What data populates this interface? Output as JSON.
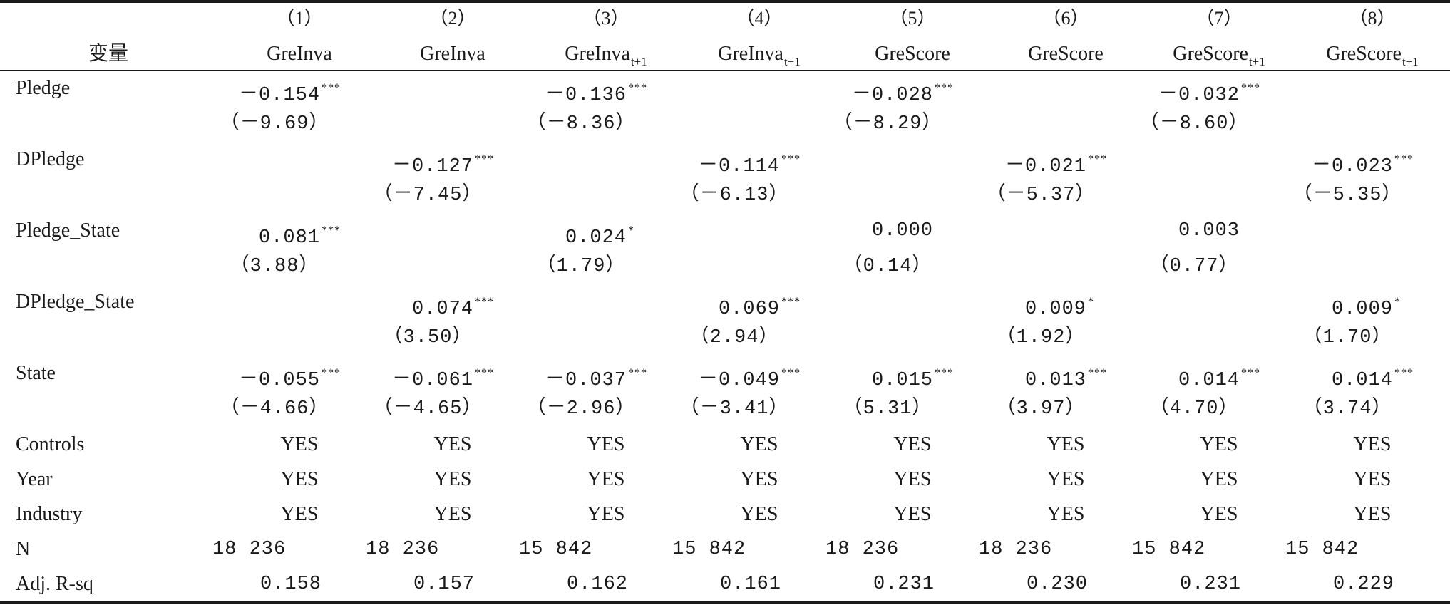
{
  "table": {
    "stub_header": "变量",
    "columns": [
      {
        "num": "（1）",
        "name": "GreInva",
        "sub": ""
      },
      {
        "num": "（2）",
        "name": "GreInva",
        "sub": ""
      },
      {
        "num": "（3）",
        "name": "GreInva",
        "sub": "t+1"
      },
      {
        "num": "（4）",
        "name": "GreInva",
        "sub": "t+1"
      },
      {
        "num": "（5）",
        "name": "GreScore",
        "sub": ""
      },
      {
        "num": "（6）",
        "name": "GreScore",
        "sub": ""
      },
      {
        "num": "（7）",
        "name": "GreScore",
        "sub": "t+1"
      },
      {
        "num": "（8）",
        "name": "GreScore",
        "sub": "t+1"
      }
    ],
    "rows": [
      {
        "label": "Pledge",
        "coef": [
          "－0.154",
          "",
          "－0.136",
          "",
          "－0.028",
          "",
          "－0.032",
          ""
        ],
        "stars": [
          "***",
          "",
          "***",
          "",
          "***",
          "",
          "***",
          ""
        ],
        "t": [
          "（－9.69）",
          "",
          "（－8.36）",
          "",
          "（－8.29）",
          "",
          "（－8.60）",
          ""
        ]
      },
      {
        "label": "DPledge",
        "coef": [
          "",
          "－0.127",
          "",
          "－0.114",
          "",
          "－0.021",
          "",
          "－0.023"
        ],
        "stars": [
          "",
          "***",
          "",
          "***",
          "",
          "***",
          "",
          "***"
        ],
        "t": [
          "",
          "（－7.45）",
          "",
          "（－6.13）",
          "",
          "（－5.37）",
          "",
          "（－5.35）"
        ]
      },
      {
        "label": "Pledge_State",
        "coef": [
          "0.081",
          "",
          "0.024",
          "",
          "0.000",
          "",
          "0.003",
          ""
        ],
        "stars": [
          "***",
          "",
          "*",
          "",
          "",
          "",
          "",
          ""
        ],
        "t": [
          "（3.88）",
          "",
          "（1.79）",
          "",
          "（0.14）",
          "",
          "（0.77）",
          ""
        ]
      },
      {
        "label": "DPledge_State",
        "coef": [
          "",
          "0.074",
          "",
          "0.069",
          "",
          "0.009",
          "",
          "0.009"
        ],
        "stars": [
          "",
          "***",
          "",
          "***",
          "",
          "*",
          "",
          "*"
        ],
        "t": [
          "",
          "（3.50）",
          "",
          "（2.94）",
          "",
          "（1.92）",
          "",
          "（1.70）"
        ]
      },
      {
        "label": "State",
        "coef": [
          "－0.055",
          "－0.061",
          "－0.037",
          "－0.049",
          "0.015",
          "0.013",
          "0.014",
          "0.014"
        ],
        "stars": [
          "***",
          "***",
          "***",
          "***",
          "***",
          "***",
          "***",
          "***"
        ],
        "t": [
          "（－4.66）",
          "（－4.65）",
          "（－2.96）",
          "（－3.41）",
          "（5.31）",
          "（3.97）",
          "（4.70）",
          "（3.74）"
        ]
      }
    ],
    "yes_rows": [
      {
        "label": "Controls",
        "values": [
          "YES",
          "YES",
          "YES",
          "YES",
          "YES",
          "YES",
          "YES",
          "YES"
        ]
      },
      {
        "label": "Year",
        "values": [
          "YES",
          "YES",
          "YES",
          "YES",
          "YES",
          "YES",
          "YES",
          "YES"
        ]
      },
      {
        "label": "Industry",
        "values": [
          "YES",
          "YES",
          "YES",
          "YES",
          "YES",
          "YES",
          "YES",
          "YES"
        ]
      }
    ],
    "n_row": {
      "label": "N",
      "values": [
        "18 236",
        "18 236",
        "15 842",
        "15 842",
        "18 236",
        "18 236",
        "15 842",
        "15 842"
      ]
    },
    "r2_row": {
      "label": "Adj. R-sq",
      "values": [
        "0.158",
        "0.157",
        "0.162",
        "0.161",
        "0.231",
        "0.230",
        "0.231",
        "0.229"
      ]
    }
  }
}
